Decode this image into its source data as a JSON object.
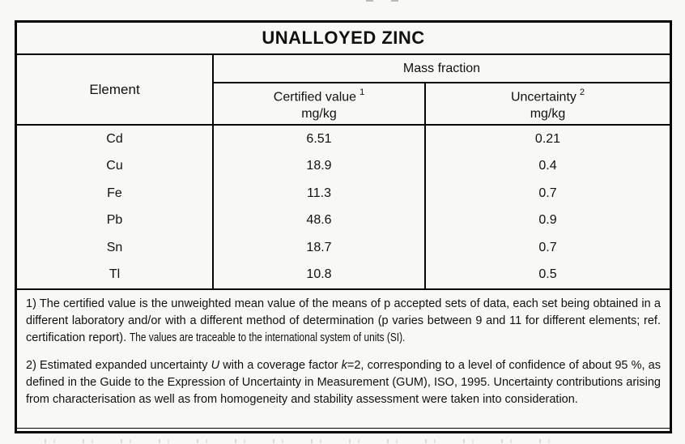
{
  "colors": {
    "background": "#f8f8f7",
    "border": "#050505",
    "text": "#111111"
  },
  "table": {
    "title": "UNALLOYED ZINC",
    "columns": {
      "element": "Element",
      "mass_fraction": "Mass fraction",
      "certified": {
        "label": "Certified value",
        "footnote_ref": "1",
        "unit": "mg/kg"
      },
      "uncertainty": {
        "label": "Uncertainty",
        "footnote_ref": "2",
        "unit": "mg/kg"
      }
    },
    "rows": [
      {
        "element": "Cd",
        "certified_value": "6.51",
        "uncertainty": "0.21"
      },
      {
        "element": "Cu",
        "certified_value": "18.9",
        "uncertainty": "0.4"
      },
      {
        "element": "Fe",
        "certified_value": "11.3",
        "uncertainty": "0.7"
      },
      {
        "element": "Pb",
        "certified_value": "48.6",
        "uncertainty": "0.9"
      },
      {
        "element": "Sn",
        "certified_value": "18.7",
        "uncertainty": "0.7"
      },
      {
        "element": "Tl",
        "certified_value": "10.8",
        "uncertainty": "0.5"
      }
    ],
    "footnotes": {
      "note1": {
        "main": "1) The certified value is the unweighted mean value of the means of p accepted sets of data, each set being obtained in a different laboratory and/or with a different method of determination (p varies between 9 and 11 for different elements; ref. certification report). ",
        "traceability": "The values are traceable to the international system of units (SI)."
      },
      "note2": {
        "part1": "2) Estimated expanded uncertainty ",
        "u_symbol": "U",
        "part2": " with a coverage factor ",
        "k_symbol": "k",
        "part3": "=2, corresponding to a level of confidence of about 95 %, as defined in the Guide to the Expression of Uncertainty in Measurement (GUM), ISO, 1995. Uncertainty contributions arising from characterisation as well as from homogeneity and stability assessment were taken into consideration."
      }
    }
  }
}
